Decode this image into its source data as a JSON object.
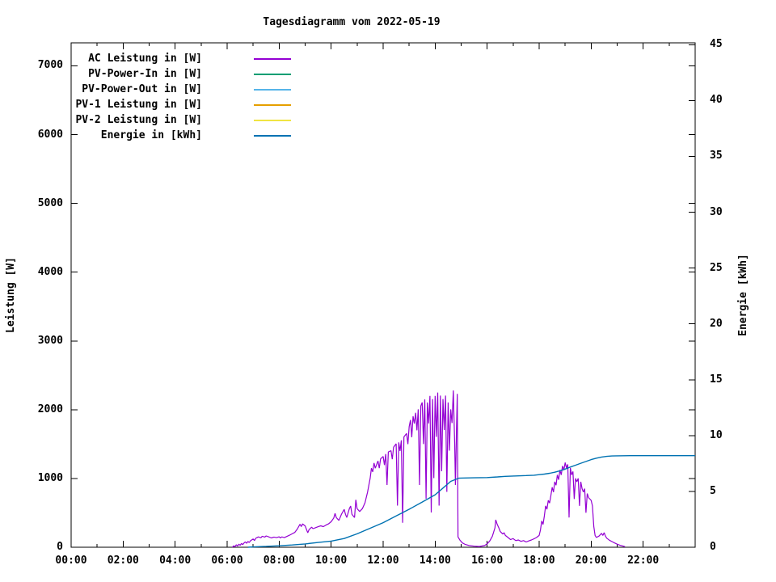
{
  "title": "Tagesdiagramm vom 2022-05-19",
  "axes": {
    "left_label": "Leistung [W]",
    "right_label": "Energie [kWh]",
    "left_ticks": [
      0,
      1000,
      2000,
      3000,
      4000,
      5000,
      6000,
      7000
    ],
    "right_ticks": [
      0,
      5,
      10,
      15,
      20,
      25,
      30,
      35,
      40,
      45
    ],
    "x_tick_labels": [
      "00:00",
      "02:00",
      "04:00",
      "06:00",
      "08:00",
      "10:00",
      "12:00",
      "14:00",
      "16:00",
      "18:00",
      "20:00",
      "22:00"
    ]
  },
  "colors": {
    "ac_power": "#9400d3",
    "pv_power_in": "#009e73",
    "pv_power_out": "#56b4e9",
    "pv1_power": "#e69f00",
    "pv2_power": "#f0e442",
    "energy": "#0072b2",
    "axis": "#000000",
    "background": "#ffffff"
  },
  "legend": {
    "items": [
      {
        "label": "AC Leistung in [W]",
        "color": "#9400d3"
      },
      {
        "label": "PV-Power-In in [W]",
        "color": "#009e73"
      },
      {
        "label": "PV-Power-Out in [W]",
        "color": "#56b4e9"
      },
      {
        "label": "PV-1 Leistung in [W]",
        "color": "#e69f00"
      },
      {
        "label": "PV-2 Leistung in [W]",
        "color": "#f0e442"
      },
      {
        "label": "Energie in [kWh]",
        "color": "#0072b2"
      }
    ]
  },
  "chart_data": {
    "type": "line",
    "title": "Tagesdiagramm vom 2022-05-19",
    "x_unit": "hours",
    "xlim": [
      0,
      24
    ],
    "x_major_tick_hours": 2,
    "x_minor_tick_hours": 1,
    "ylabel": "Leistung [W]",
    "ylim": [
      0,
      7335
    ],
    "yticks": [
      0,
      1000,
      2000,
      3000,
      4000,
      5000,
      6000,
      7000
    ],
    "y2label": "Energie [kWh]",
    "y2lim": [
      0,
      45.17
    ],
    "y2ticks": [
      0,
      5,
      10,
      15,
      20,
      25,
      30,
      35,
      40,
      45
    ],
    "grid": false,
    "legend_position": "inside top-left",
    "series": [
      {
        "name": "AC Leistung in [W]",
        "color": "#9400d3",
        "axis": "left",
        "points": [
          [
            6.2,
            0
          ],
          [
            6.25,
            20
          ],
          [
            6.3,
            8
          ],
          [
            6.35,
            35
          ],
          [
            6.4,
            18
          ],
          [
            6.45,
            45
          ],
          [
            6.5,
            28
          ],
          [
            6.55,
            55
          ],
          [
            6.6,
            38
          ],
          [
            6.65,
            62
          ],
          [
            6.7,
            78
          ],
          [
            6.75,
            58
          ],
          [
            6.8,
            85
          ],
          [
            6.85,
            68
          ],
          [
            6.9,
            95
          ],
          [
            7,
            120
          ],
          [
            7.05,
            98
          ],
          [
            7.1,
            130
          ],
          [
            7.2,
            150
          ],
          [
            7.3,
            138
          ],
          [
            7.35,
            160
          ],
          [
            7.45,
            148
          ],
          [
            7.5,
            165
          ],
          [
            7.6,
            150
          ],
          [
            7.7,
            135
          ],
          [
            7.8,
            148
          ],
          [
            7.9,
            140
          ],
          [
            8,
            152
          ],
          [
            8.05,
            135
          ],
          [
            8.1,
            150
          ],
          [
            8.2,
            140
          ],
          [
            8.3,
            158
          ],
          [
            8.4,
            175
          ],
          [
            8.5,
            195
          ],
          [
            8.6,
            215
          ],
          [
            8.7,
            265
          ],
          [
            8.8,
            335
          ],
          [
            8.85,
            300
          ],
          [
            8.9,
            340
          ],
          [
            9,
            310
          ],
          [
            9.1,
            210
          ],
          [
            9.15,
            255
          ],
          [
            9.25,
            292
          ],
          [
            9.3,
            270
          ],
          [
            9.4,
            285
          ],
          [
            9.5,
            298
          ],
          [
            9.6,
            312
          ],
          [
            9.7,
            300
          ],
          [
            9.8,
            322
          ],
          [
            9.9,
            340
          ],
          [
            10,
            372
          ],
          [
            10.1,
            425
          ],
          [
            10.15,
            492
          ],
          [
            10.2,
            430
          ],
          [
            10.3,
            390
          ],
          [
            10.4,
            482
          ],
          [
            10.5,
            550
          ],
          [
            10.55,
            478
          ],
          [
            10.6,
            432
          ],
          [
            10.7,
            562
          ],
          [
            10.75,
            600
          ],
          [
            10.8,
            478
          ],
          [
            10.9,
            432
          ],
          [
            10.95,
            690
          ],
          [
            11,
            560
          ],
          [
            11.1,
            520
          ],
          [
            11.2,
            562
          ],
          [
            11.3,
            645
          ],
          [
            11.4,
            800
          ],
          [
            11.5,
            1000
          ],
          [
            11.55,
            1150
          ],
          [
            11.6,
            1095
          ],
          [
            11.65,
            1225
          ],
          [
            11.7,
            1150
          ],
          [
            11.8,
            1255
          ],
          [
            11.85,
            1150
          ],
          [
            11.9,
            1285
          ],
          [
            12,
            1320
          ],
          [
            12.05,
            1195
          ],
          [
            12.1,
            1355
          ],
          [
            12.15,
            905
          ],
          [
            12.2,
            1385
          ],
          [
            12.3,
            1405
          ],
          [
            12.35,
            1280
          ],
          [
            12.4,
            1455
          ],
          [
            12.5,
            1505
          ],
          [
            12.55,
            605
          ],
          [
            12.6,
            1525
          ],
          [
            12.65,
            1400
          ],
          [
            12.7,
            1555
          ],
          [
            12.75,
            355
          ],
          [
            12.8,
            1605
          ],
          [
            12.9,
            1655
          ],
          [
            12.95,
            1500
          ],
          [
            13,
            1755
          ],
          [
            13.05,
            1850
          ],
          [
            13.1,
            1600
          ],
          [
            13.15,
            1905
          ],
          [
            13.2,
            1800
          ],
          [
            13.25,
            1955
          ],
          [
            13.3,
            1700
          ],
          [
            13.35,
            2005
          ],
          [
            13.4,
            905
          ],
          [
            13.45,
            2055
          ],
          [
            13.5,
            2105
          ],
          [
            13.55,
            1500
          ],
          [
            13.6,
            2150
          ],
          [
            13.65,
            705
          ],
          [
            13.7,
            2105
          ],
          [
            13.75,
            1800
          ],
          [
            13.8,
            2200
          ],
          [
            13.85,
            505
          ],
          [
            13.9,
            2155
          ],
          [
            13.95,
            1005
          ],
          [
            14,
            2200
          ],
          [
            14.05,
            1605
          ],
          [
            14.1,
            2250
          ],
          [
            14.15,
            605
          ],
          [
            14.2,
            2205
          ],
          [
            14.25,
            1105
          ],
          [
            14.3,
            2155
          ],
          [
            14.35,
            1705
          ],
          [
            14.4,
            2205
          ],
          [
            14.45,
            805
          ],
          [
            14.5,
            2105
          ],
          [
            14.55,
            1405
          ],
          [
            14.6,
            2005
          ],
          [
            14.65,
            1805
          ],
          [
            14.7,
            2280
          ],
          [
            14.75,
            1505
          ],
          [
            14.78,
            905
          ],
          [
            14.82,
            1705
          ],
          [
            14.85,
            2230
          ],
          [
            14.88,
            150
          ],
          [
            14.95,
            105
          ],
          [
            15.05,
            62
          ],
          [
            15.15,
            42
          ],
          [
            15.3,
            26
          ],
          [
            15.5,
            15
          ],
          [
            15.7,
            10
          ],
          [
            15.9,
            25
          ],
          [
            16,
            50
          ],
          [
            16.1,
            92
          ],
          [
            16.2,
            160
          ],
          [
            16.3,
            282
          ],
          [
            16.33,
            400
          ],
          [
            16.38,
            340
          ],
          [
            16.45,
            282
          ],
          [
            16.5,
            230
          ],
          [
            16.6,
            192
          ],
          [
            16.65,
            212
          ],
          [
            16.7,
            172
          ],
          [
            16.8,
            142
          ],
          [
            16.9,
            112
          ],
          [
            17,
            126
          ],
          [
            17.1,
            96
          ],
          [
            17.2,
            106
          ],
          [
            17.3,
            86
          ],
          [
            17.4,
            96
          ],
          [
            17.5,
            76
          ],
          [
            17.6,
            92
          ],
          [
            17.7,
            106
          ],
          [
            17.8,
            122
          ],
          [
            17.9,
            142
          ],
          [
            18,
            172
          ],
          [
            18.05,
            252
          ],
          [
            18.1,
            382
          ],
          [
            18.15,
            332
          ],
          [
            18.2,
            452
          ],
          [
            18.25,
            602
          ],
          [
            18.3,
            552
          ],
          [
            18.35,
            682
          ],
          [
            18.4,
            642
          ],
          [
            18.45,
            752
          ],
          [
            18.5,
            872
          ],
          [
            18.55,
            802
          ],
          [
            18.6,
            952
          ],
          [
            18.65,
            902
          ],
          [
            18.7,
            1052
          ],
          [
            18.75,
            982
          ],
          [
            18.8,
            1122
          ],
          [
            18.85,
            1052
          ],
          [
            18.9,
            1182
          ],
          [
            18.95,
            1122
          ],
          [
            19,
            1232
          ],
          [
            19.05,
            1152
          ],
          [
            19.1,
            1205
          ],
          [
            19.15,
            432
          ],
          [
            19.2,
            1152
          ],
          [
            19.25,
            1052
          ],
          [
            19.3,
            1102
          ],
          [
            19.35,
            702
          ],
          [
            19.4,
            1002
          ],
          [
            19.45,
            952
          ],
          [
            19.5,
            1002
          ],
          [
            19.55,
            602
          ],
          [
            19.6,
            952
          ],
          [
            19.65,
            852
          ],
          [
            19.7,
            802
          ],
          [
            19.75,
            852
          ],
          [
            19.8,
            502
          ],
          [
            19.85,
            782
          ],
          [
            19.9,
            722
          ],
          [
            20,
            682
          ],
          [
            20.05,
            602
          ],
          [
            20.1,
            302
          ],
          [
            20.15,
            172
          ],
          [
            20.2,
            142
          ],
          [
            20.3,
            162
          ],
          [
            20.4,
            202
          ],
          [
            20.45,
            172
          ],
          [
            20.5,
            212
          ],
          [
            20.55,
            162
          ],
          [
            20.6,
            132
          ],
          [
            20.7,
            102
          ],
          [
            20.8,
            82
          ],
          [
            20.9,
            62
          ],
          [
            21,
            45
          ],
          [
            21.1,
            30
          ],
          [
            21.2,
            20
          ],
          [
            21.3,
            8
          ]
        ]
      },
      {
        "name": "PV-Power-In in [W]",
        "color": "#009e73",
        "axis": "left",
        "points": []
      },
      {
        "name": "PV-Power-Out in [W]",
        "color": "#56b4e9",
        "axis": "left",
        "points": []
      },
      {
        "name": "PV-1 Leistung in [W]",
        "color": "#e69f00",
        "axis": "left",
        "points": []
      },
      {
        "name": "PV-2 Leistung in [W]",
        "color": "#f0e442",
        "axis": "left",
        "points": []
      },
      {
        "name": "Energie in [kWh]",
        "color": "#0072b2",
        "axis": "right",
        "points": [
          [
            6.8,
            0
          ],
          [
            7,
            0.03
          ],
          [
            7.5,
            0.08
          ],
          [
            8,
            0.13
          ],
          [
            8.5,
            0.2
          ],
          [
            9,
            0.3
          ],
          [
            9.5,
            0.43
          ],
          [
            10,
            0.55
          ],
          [
            10.5,
            0.78
          ],
          [
            11,
            1.2
          ],
          [
            11.5,
            1.7
          ],
          [
            12,
            2.2
          ],
          [
            12.5,
            2.8
          ],
          [
            13,
            3.4
          ],
          [
            13.5,
            4.05
          ],
          [
            14,
            4.7
          ],
          [
            14.3,
            5.3
          ],
          [
            14.6,
            5.9
          ],
          [
            14.9,
            6.18
          ],
          [
            15,
            6.2
          ],
          [
            15.5,
            6.22
          ],
          [
            16,
            6.24
          ],
          [
            16.4,
            6.3
          ],
          [
            16.7,
            6.35
          ],
          [
            17,
            6.38
          ],
          [
            17.5,
            6.42
          ],
          [
            17.8,
            6.45
          ],
          [
            18,
            6.5
          ],
          [
            18.2,
            6.55
          ],
          [
            18.4,
            6.62
          ],
          [
            18.6,
            6.72
          ],
          [
            18.8,
            6.85
          ],
          [
            19,
            7
          ],
          [
            19.2,
            7.18
          ],
          [
            19.4,
            7.35
          ],
          [
            19.6,
            7.52
          ],
          [
            19.8,
            7.68
          ],
          [
            20,
            7.85
          ],
          [
            20.2,
            7.98
          ],
          [
            20.4,
            8.08
          ],
          [
            20.6,
            8.14
          ],
          [
            20.8,
            8.17
          ],
          [
            21,
            8.19
          ],
          [
            21.5,
            8.2
          ],
          [
            22,
            8.2
          ],
          [
            24,
            8.2
          ]
        ]
      }
    ]
  }
}
